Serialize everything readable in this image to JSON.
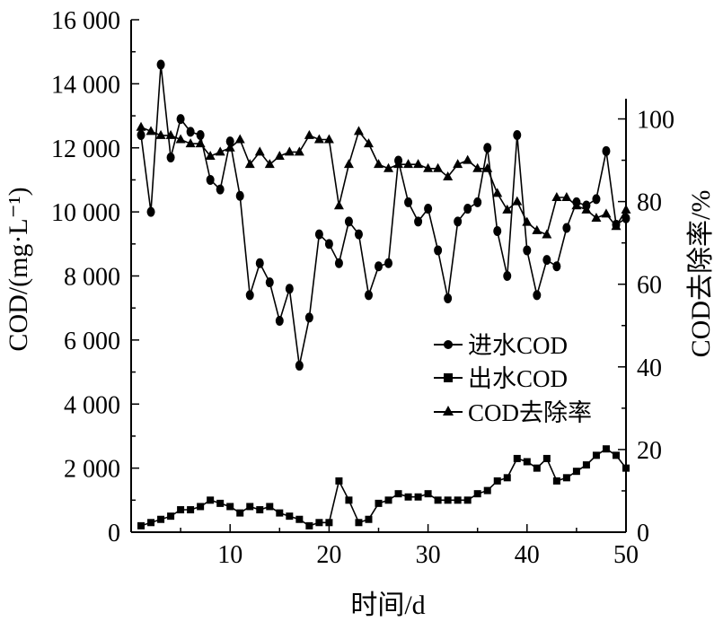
{
  "chart_data": {
    "type": "line",
    "xlabel": "时间/d",
    "ylabel_left": "COD/(mg·L⁻¹)",
    "ylabel_right": "COD去除率/%",
    "x_ticks": [
      "10",
      "20",
      "30",
      "40",
      "50"
    ],
    "x_tick_values": [
      10,
      20,
      30,
      40,
      50
    ],
    "y_left_ticks": [
      "0",
      "2 000",
      "4 000",
      "6 000",
      "8 000",
      "10 000",
      "12 000",
      "14 000",
      "16 000"
    ],
    "y_left_tick_values": [
      0,
      2000,
      4000,
      6000,
      8000,
      10000,
      12000,
      14000,
      16000
    ],
    "y_right_ticks": [
      "0",
      "20",
      "40",
      "60",
      "80",
      "100"
    ],
    "y_right_tick_values": [
      0,
      20,
      40,
      60,
      80,
      100
    ],
    "xlim": [
      0,
      50
    ],
    "ylim_left": [
      0,
      16000
    ],
    "ylim_right": [
      0,
      124
    ],
    "legend_position": "right-middle",
    "x": [
      1,
      2,
      3,
      4,
      5,
      6,
      7,
      8,
      9,
      10,
      11,
      12,
      13,
      14,
      15,
      16,
      17,
      18,
      19,
      20,
      21,
      22,
      23,
      24,
      25,
      26,
      27,
      28,
      29,
      30,
      31,
      32,
      33,
      34,
      35,
      36,
      37,
      38,
      39,
      40,
      41,
      42,
      43,
      44,
      45,
      46,
      47,
      48,
      49,
      50
    ],
    "series": [
      {
        "name": "进水COD",
        "marker": "circle",
        "axis": "left",
        "values": [
          12400,
          10000,
          14600,
          11700,
          12900,
          12500,
          12400,
          11000,
          10700,
          12200,
          10500,
          7400,
          8400,
          7800,
          6600,
          7600,
          5200,
          6700,
          9300,
          9000,
          8400,
          9700,
          9300,
          7400,
          8300,
          8400,
          11600,
          10300,
          9700,
          10100,
          8800,
          7300,
          9700,
          10100,
          10300,
          12000,
          9400,
          8000,
          12400,
          8800,
          7400,
          8500,
          8300,
          9500,
          10300,
          10200,
          10400,
          11900,
          9600,
          9800
        ]
      },
      {
        "name": "出水COD",
        "marker": "square",
        "axis": "left",
        "values": [
          200,
          300,
          400,
          500,
          700,
          700,
          800,
          1000,
          900,
          800,
          600,
          800,
          700,
          800,
          600,
          500,
          400,
          200,
          300,
          300,
          1600,
          1000,
          300,
          400,
          900,
          1000,
          1200,
          1100,
          1100,
          1200,
          1000,
          1000,
          1000,
          1000,
          1200,
          1300,
          1600,
          1700,
          2300,
          2200,
          2000,
          2300,
          1600,
          1700,
          1900,
          2100,
          2400,
          2600,
          2400,
          2000
        ]
      },
      {
        "name": "COD去除率",
        "marker": "triangle",
        "axis": "right",
        "values": [
          98,
          97,
          96,
          96,
          95,
          94,
          94,
          91,
          92,
          93,
          95,
          89,
          92,
          89,
          91,
          92,
          92,
          96,
          95,
          95,
          79,
          89,
          97,
          94,
          89,
          88,
          89,
          89,
          89,
          88,
          88,
          86,
          89,
          90,
          88,
          88,
          82,
          78,
          80,
          75,
          73,
          72,
          81,
          81,
          79,
          78,
          76,
          77,
          74,
          78
        ]
      }
    ]
  }
}
